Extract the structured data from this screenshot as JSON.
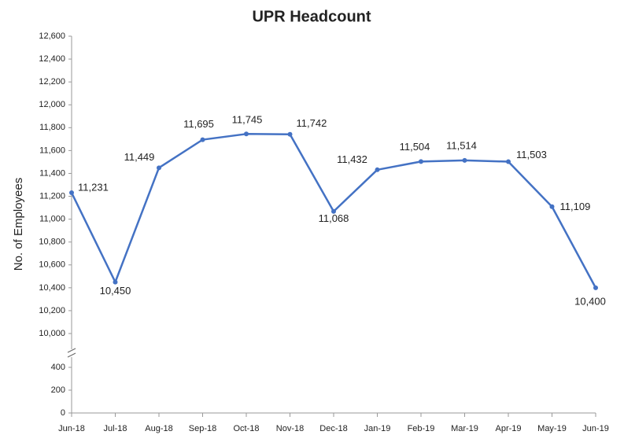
{
  "chart_data": {
    "type": "line",
    "title": "UPR Headcount",
    "y_label": "No. of Employees",
    "categories": [
      "Jun-18",
      "Jul-18",
      "Aug-18",
      "Sep-18",
      "Oct-18",
      "Nov-18",
      "Dec-18",
      "Jan-19",
      "Feb-19",
      "Mar-19",
      "Apr-19",
      "May-19",
      "Jun-19"
    ],
    "values": [
      11231,
      10450,
      11449,
      11695,
      11745,
      11742,
      11068,
      11432,
      11504,
      11514,
      11503,
      11109,
      10400
    ],
    "value_labels": [
      "11,231",
      "10,450",
      "11,449",
      "11,695",
      "11,745",
      "11,742",
      "11,068",
      "11,432",
      "11,504",
      "11,514",
      "11,503",
      "11,109",
      "10,400"
    ],
    "color": "#4472c4",
    "y_segments": [
      {
        "ylim": [
          0,
          500
        ],
        "yticks": [
          0,
          200,
          400
        ]
      },
      {
        "ylim": [
          10000,
          12600
        ],
        "yticks": [
          {
            "value": 10000,
            "label": "10,000"
          },
          {
            "value": 10200,
            "label": "10,200"
          },
          {
            "value": 10400,
            "label": "10,400"
          },
          {
            "value": 10600,
            "label": "10,600"
          },
          {
            "value": 10800,
            "label": "10,800"
          },
          {
            "value": 11000,
            "label": "11,000"
          },
          {
            "value": 11200,
            "label": "11,200"
          },
          {
            "value": 11400,
            "label": "11,400"
          },
          {
            "value": 11600,
            "label": "11,600"
          },
          {
            "value": 11800,
            "label": "11,800"
          },
          {
            "value": 12000,
            "label": "12,000"
          },
          {
            "value": 12200,
            "label": "12,200"
          },
          {
            "value": 12400,
            "label": "12,400"
          },
          {
            "value": 12600,
            "label": "12,600"
          }
        ]
      }
    ]
  }
}
